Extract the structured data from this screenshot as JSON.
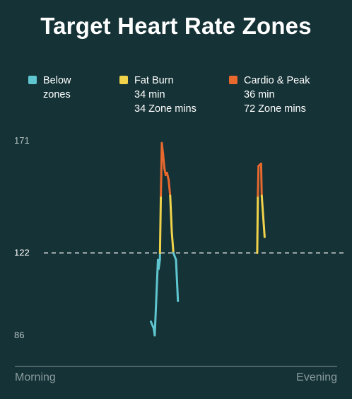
{
  "title": "Target Heart Rate Zones",
  "legend": [
    {
      "name": "Below zones",
      "line1": "Below",
      "line2": "zones",
      "line3": "",
      "color": "#5fc6d0"
    },
    {
      "name": "Fat Burn",
      "line1": "Fat Burn",
      "line2": "34 min",
      "line3": "34 Zone mins",
      "color": "#f0d34a"
    },
    {
      "name": "Cardio & Peak",
      "line1": "Cardio & Peak",
      "line2": "36 min",
      "line3": "72 Zone mins",
      "color": "#e8692e"
    }
  ],
  "chart_data": {
    "type": "line",
    "title": "Target Heart Rate Zones",
    "y_ticks": [
      "171",
      "122",
      "86"
    ],
    "reference_line": {
      "value": 122,
      "style": "dashed"
    },
    "x_labels": [
      "Morning",
      "Evening"
    ],
    "ylim": [
      82,
      174
    ],
    "xlim": [
      0,
      100
    ],
    "thresholds": {
      "fat_burn": 122,
      "cardio": 147
    },
    "series": [
      {
        "points": [
          [
            42.2,
            92
          ],
          [
            43.1,
            89
          ],
          [
            43.4,
            86
          ],
          [
            44.4,
            119
          ],
          [
            44.6,
            115
          ],
          [
            45.0,
            119
          ],
          [
            45.3,
            147
          ],
          [
            45.6,
            170
          ],
          [
            46.0,
            165
          ],
          [
            46.4,
            159
          ],
          [
            46.8,
            156
          ],
          [
            47.2,
            157
          ],
          [
            47.7,
            154
          ],
          [
            48.2,
            147
          ],
          [
            48.7,
            131
          ],
          [
            49.2,
            122
          ],
          [
            50.0,
            119
          ],
          [
            50.6,
            101
          ]
        ]
      },
      {
        "points": [
          [
            75.2,
            122
          ],
          [
            75.4,
            147
          ],
          [
            75.6,
            160
          ],
          [
            76.4,
            161
          ],
          [
            76.6,
            147
          ],
          [
            77.5,
            129
          ]
        ]
      }
    ]
  }
}
